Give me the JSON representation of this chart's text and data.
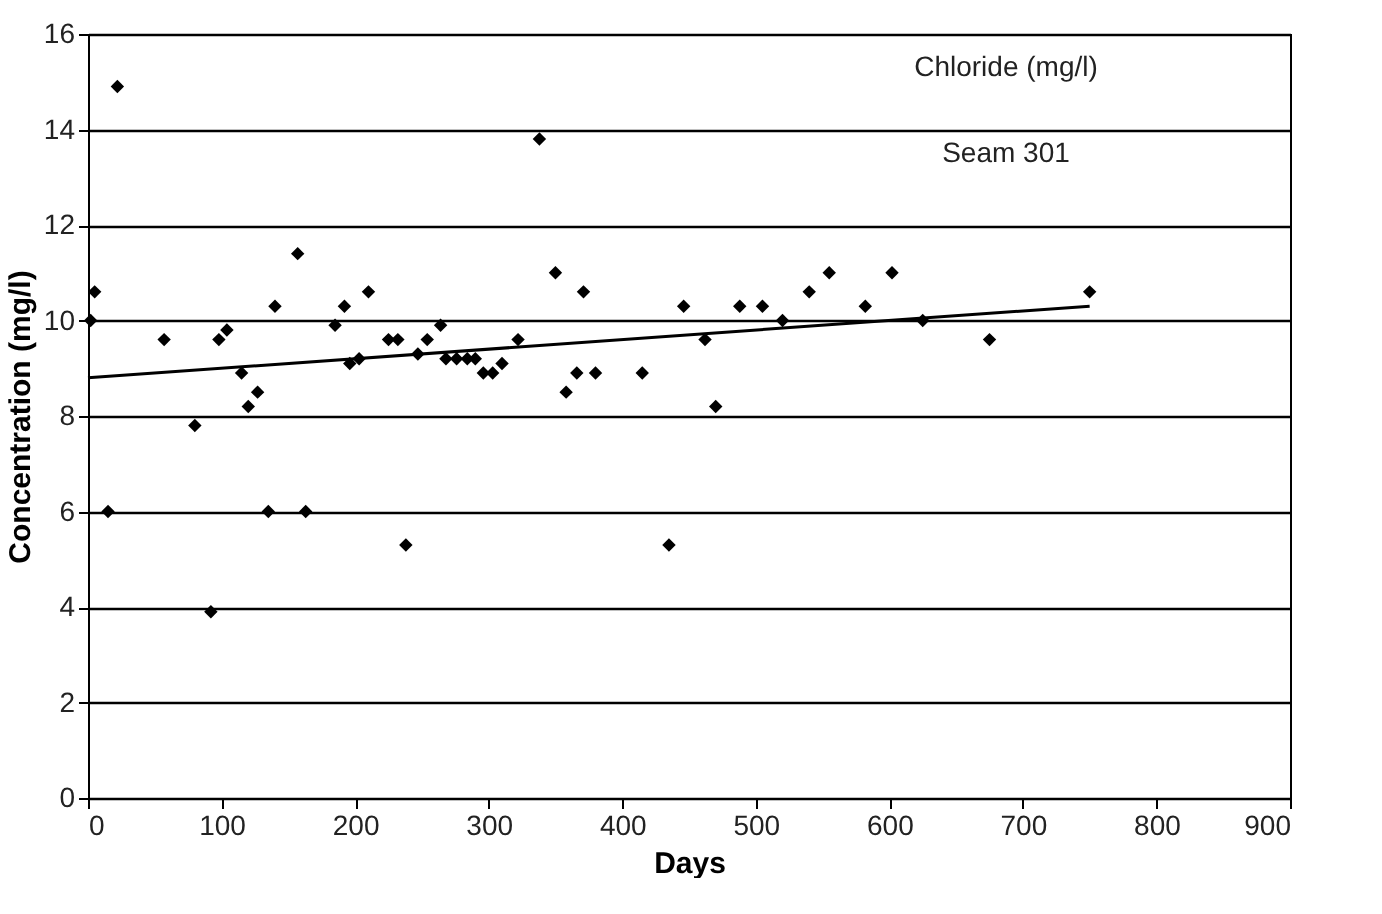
{
  "chart_data": {
    "type": "scatter",
    "xlabel": "Days",
    "ylabel": "Concentration (mg/l)",
    "annotations": [
      "Chloride (mg/l)",
      "Seam 301"
    ],
    "xlim": [
      0,
      900
    ],
    "xticks": [
      0,
      100,
      200,
      300,
      400,
      500,
      600,
      700,
      800,
      900
    ],
    "ylim": [
      0,
      16
    ],
    "yticks": [
      0,
      2,
      4,
      6,
      8,
      10,
      12,
      14,
      16
    ],
    "grid": "y",
    "marker": "diamond",
    "series": [
      {
        "color": "#000000",
        "x": [
          2,
          5,
          15,
          22,
          57,
          80,
          92,
          98,
          104,
          115,
          120,
          127,
          135,
          140,
          157,
          163,
          185,
          192,
          196,
          203,
          210,
          225,
          232,
          238,
          247,
          254,
          264,
          268,
          276,
          284,
          290,
          296,
          303,
          310,
          322,
          338,
          350,
          358,
          366,
          371,
          380,
          415,
          435,
          446,
          462,
          470,
          488,
          505,
          520,
          540,
          555,
          582,
          602,
          625,
          675,
          750
        ],
        "values": [
          10.0,
          10.6,
          6.0,
          14.9,
          9.6,
          7.8,
          3.9,
          9.6,
          9.8,
          8.9,
          8.2,
          8.5,
          6.0,
          10.3,
          11.4,
          6.0,
          9.9,
          10.3,
          9.1,
          9.2,
          10.6,
          9.6,
          9.6,
          5.3,
          9.3,
          9.6,
          9.9,
          9.2,
          9.2,
          9.2,
          9.2,
          8.9,
          8.9,
          9.1,
          9.6,
          13.8,
          11.0,
          8.5,
          8.9,
          10.6,
          8.9,
          8.9,
          5.3,
          10.3,
          9.6,
          8.2,
          10.3,
          10.3,
          10.0,
          10.6,
          11.0,
          10.3,
          11.0,
          10.0,
          9.6,
          10.6
        ]
      },
      {
        "type": "line",
        "marker": "none",
        "color": "#000000",
        "x": [
          0,
          750
        ],
        "values": [
          8.8,
          10.3
        ]
      }
    ]
  }
}
